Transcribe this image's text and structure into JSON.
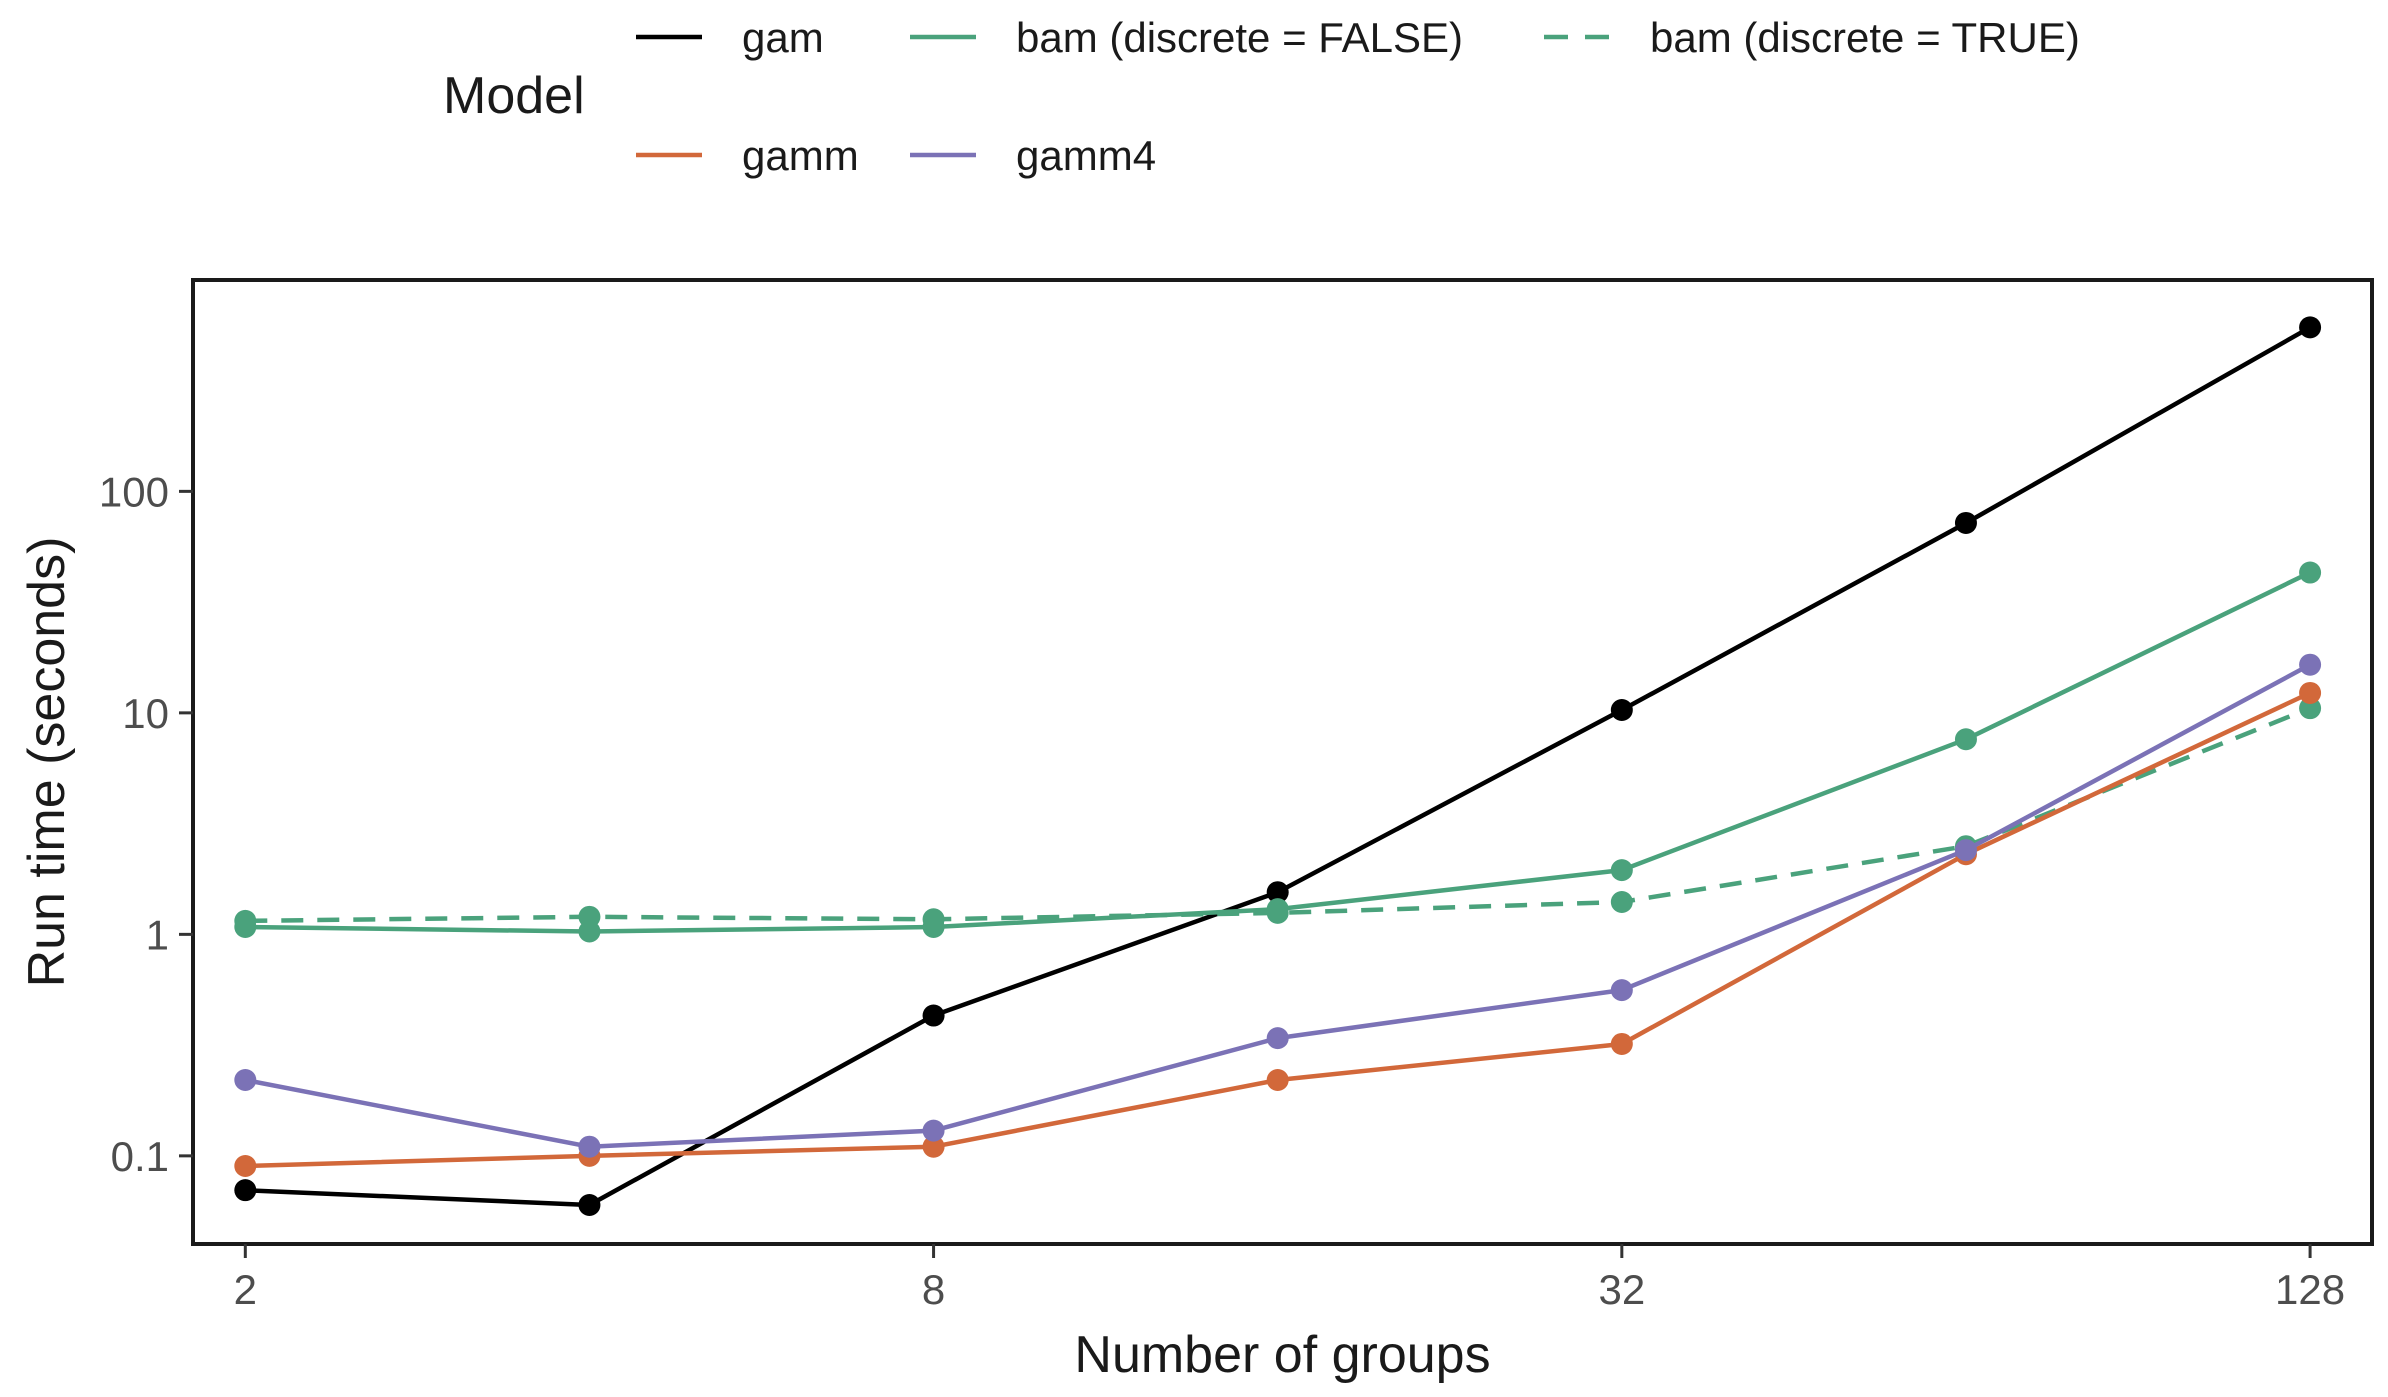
{
  "chart_data": {
    "type": "line",
    "xlabel": "Number of groups",
    "ylabel": "Run time (seconds)",
    "x_scale": "log2",
    "y_scale": "log10",
    "x_ticks": [
      2,
      8,
      32,
      128
    ],
    "x_tick_labels": [
      "2",
      "8",
      "32",
      "128"
    ],
    "y_ticks": [
      0.1,
      1,
      10,
      100
    ],
    "y_tick_labels": [
      "0.1",
      "1",
      "10",
      "100"
    ],
    "xlim": [
      1.8,
      145
    ],
    "ylim": [
      0.04,
      900
    ],
    "grid": false,
    "legend": {
      "title": "Model",
      "position": "top"
    },
    "x": [
      2,
      4,
      8,
      16,
      32,
      64,
      128
    ],
    "series": [
      {
        "name": "gam",
        "color": "#000000",
        "dashed": false,
        "values": [
          0.07,
          0.06,
          0.43,
          1.55,
          10.3,
          72,
          550
        ]
      },
      {
        "name": "bam (discrete = FALSE)",
        "color": "#4aa27c",
        "dashed": false,
        "values": [
          1.08,
          1.03,
          1.08,
          1.3,
          1.95,
          7.6,
          43
        ]
      },
      {
        "name": "bam (discrete = TRUE)",
        "color": "#4aa27c",
        "dashed": true,
        "values": [
          1.15,
          1.2,
          1.17,
          1.25,
          1.4,
          2.5,
          10.5
        ]
      },
      {
        "name": "gamm",
        "color": "#d2683a",
        "dashed": false,
        "values": [
          0.09,
          0.1,
          0.11,
          0.22,
          0.32,
          2.3,
          12.3
        ]
      },
      {
        "name": "gamm4",
        "color": "#7b72b6",
        "dashed": false,
        "values": [
          0.22,
          0.11,
          0.13,
          0.34,
          0.56,
          2.4,
          16.5
        ]
      }
    ]
  }
}
